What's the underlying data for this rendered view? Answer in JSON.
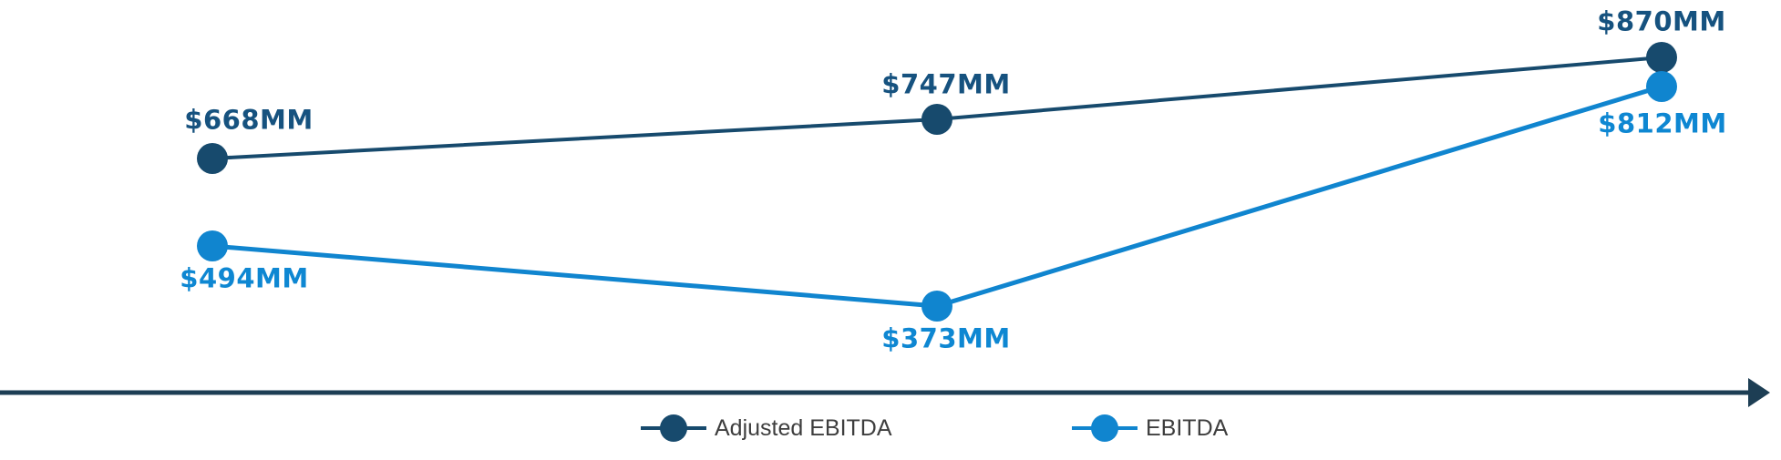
{
  "chart_data": {
    "type": "line",
    "title": "",
    "xlabel": "",
    "ylabel": "",
    "grid": false,
    "x_axis": {
      "style": "arrow-right",
      "tick_labels": []
    },
    "legend_position": "bottom-center",
    "series": [
      {
        "name": "Adjusted EBITDA",
        "color": "#174a6d",
        "values": [
          668,
          747,
          870
        ],
        "point_labels": [
          "$668MM",
          "$747MM",
          "$870MM"
        ],
        "label_placement": "above"
      },
      {
        "name": "EBITDA",
        "color": "#1085cf",
        "values": [
          494,
          373,
          812
        ],
        "point_labels": [
          "$494MM",
          "$373MM",
          "$812MM"
        ],
        "label_placement": "below"
      }
    ]
  },
  "legend": {
    "items": [
      {
        "label": "Adjusted EBITDA",
        "color": "#174a6d"
      },
      {
        "label": "EBITDA",
        "color": "#1085cf"
      }
    ]
  },
  "colors": {
    "adjusted_ebitda_series": "#174a6d",
    "adjusted_ebitda_label": "#16527f",
    "ebitda_series": "#1085cf",
    "ebitda_label": "#0e87d2",
    "axis": "#1d3e54",
    "legend_text": "#3e3e3e",
    "background": "#ffffff"
  }
}
